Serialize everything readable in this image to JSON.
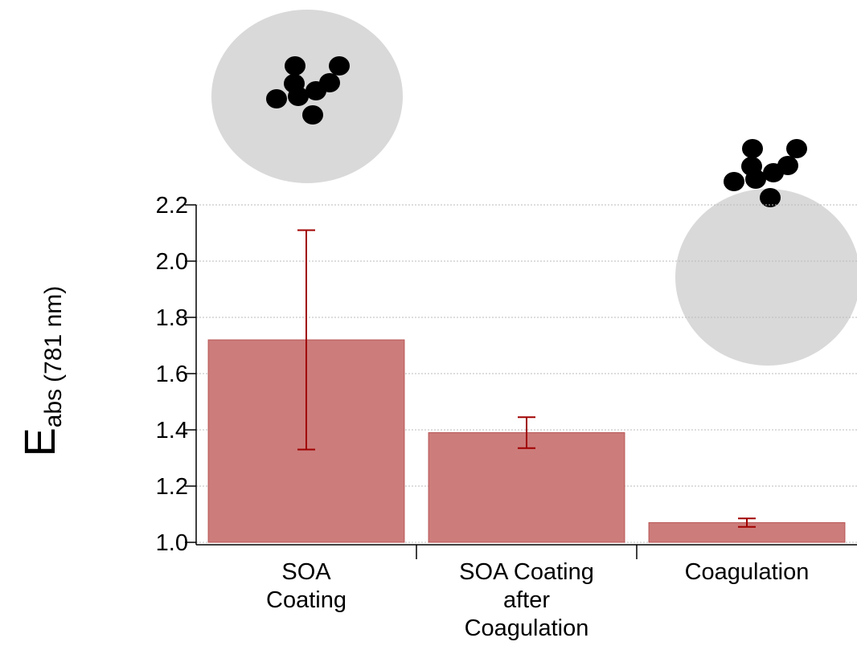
{
  "chart_data": {
    "type": "bar",
    "ylabel": {
      "main": "E",
      "subscript": "abs",
      "suffix": "(781 nm)"
    },
    "categories": [
      [
        "SOA",
        "Coating"
      ],
      [
        "SOA Coating",
        "after",
        "Coagulation"
      ],
      [
        "Coagulation"
      ]
    ],
    "values": [
      1.72,
      1.39,
      1.07
    ],
    "errors": [
      0.39,
      0.055,
      0.015
    ],
    "color": "#cc7c7b",
    "edge_color": "#b85555",
    "error_color": "#a00000",
    "ylim": [
      1.0,
      2.2
    ],
    "yticks": [
      {
        "value": 1,
        "label": "1.0"
      },
      1.2,
      1.4,
      1.6,
      1.8,
      {
        "value": 2,
        "label": "2.0"
      },
      2.2
    ],
    "grid": true
  }
}
